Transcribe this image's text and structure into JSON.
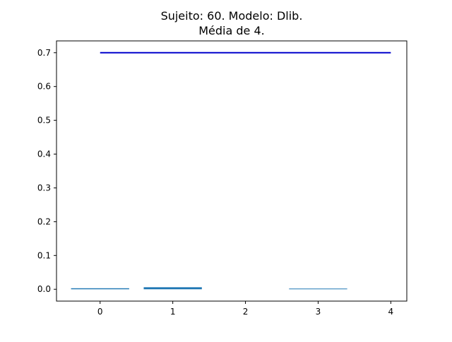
{
  "chart_data": {
    "type": "bar",
    "title_lines": [
      "Sujeito: 60. Modelo: Dlib.",
      "Média de 4."
    ],
    "xlabel": "",
    "ylabel": "",
    "categories": [
      0,
      1,
      2,
      3,
      4
    ],
    "values": [
      0.003,
      0.006,
      0.0,
      0.001,
      0.0
    ],
    "bar_color": "#1f77b4",
    "reference_line": {
      "y": 0.7,
      "x_from": 0,
      "x_to": 4,
      "color": "#0000cc"
    },
    "xlim": [
      -0.6,
      4.22
    ],
    "ylim": [
      -0.035,
      0.735
    ],
    "xticks": [
      0,
      1,
      2,
      3,
      4
    ],
    "yticks": [
      0.0,
      0.1,
      0.2,
      0.3,
      0.4,
      0.5,
      0.6,
      0.7
    ],
    "ytick_labels": [
      "0.0",
      "0.1",
      "0.2",
      "0.3",
      "0.4",
      "0.5",
      "0.6",
      "0.7"
    ],
    "grid": false,
    "legend": "none"
  }
}
